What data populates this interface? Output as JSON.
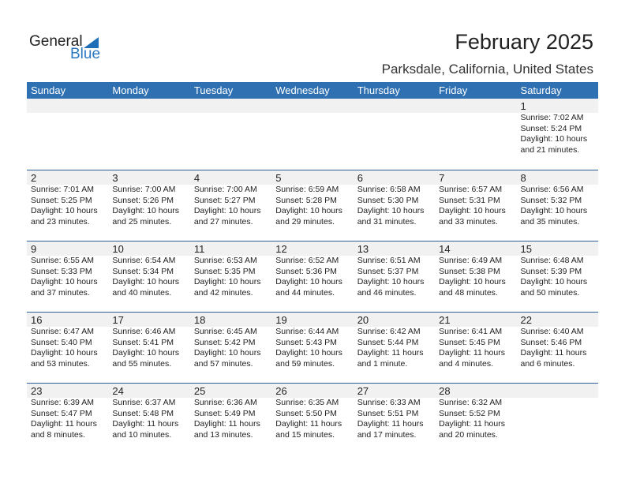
{
  "logo": {
    "general": "General",
    "blue": "Blue"
  },
  "title": "February 2025",
  "location": "Parksdale, California, United States",
  "days": [
    "Sunday",
    "Monday",
    "Tuesday",
    "Wednesday",
    "Thursday",
    "Friday",
    "Saturday"
  ],
  "weeks": [
    [
      null,
      null,
      null,
      null,
      null,
      null,
      {
        "d": "1",
        "sr": "Sunrise: 7:02 AM",
        "ss": "Sunset: 5:24 PM",
        "dl": "Daylight: 10 hours",
        "dm": "and 21 minutes."
      }
    ],
    [
      {
        "d": "2",
        "sr": "Sunrise: 7:01 AM",
        "ss": "Sunset: 5:25 PM",
        "dl": "Daylight: 10 hours",
        "dm": "and 23 minutes."
      },
      {
        "d": "3",
        "sr": "Sunrise: 7:00 AM",
        "ss": "Sunset: 5:26 PM",
        "dl": "Daylight: 10 hours",
        "dm": "and 25 minutes."
      },
      {
        "d": "4",
        "sr": "Sunrise: 7:00 AM",
        "ss": "Sunset: 5:27 PM",
        "dl": "Daylight: 10 hours",
        "dm": "and 27 minutes."
      },
      {
        "d": "5",
        "sr": "Sunrise: 6:59 AM",
        "ss": "Sunset: 5:28 PM",
        "dl": "Daylight: 10 hours",
        "dm": "and 29 minutes."
      },
      {
        "d": "6",
        "sr": "Sunrise: 6:58 AM",
        "ss": "Sunset: 5:30 PM",
        "dl": "Daylight: 10 hours",
        "dm": "and 31 minutes."
      },
      {
        "d": "7",
        "sr": "Sunrise: 6:57 AM",
        "ss": "Sunset: 5:31 PM",
        "dl": "Daylight: 10 hours",
        "dm": "and 33 minutes."
      },
      {
        "d": "8",
        "sr": "Sunrise: 6:56 AM",
        "ss": "Sunset: 5:32 PM",
        "dl": "Daylight: 10 hours",
        "dm": "and 35 minutes."
      }
    ],
    [
      {
        "d": "9",
        "sr": "Sunrise: 6:55 AM",
        "ss": "Sunset: 5:33 PM",
        "dl": "Daylight: 10 hours",
        "dm": "and 37 minutes."
      },
      {
        "d": "10",
        "sr": "Sunrise: 6:54 AM",
        "ss": "Sunset: 5:34 PM",
        "dl": "Daylight: 10 hours",
        "dm": "and 40 minutes."
      },
      {
        "d": "11",
        "sr": "Sunrise: 6:53 AM",
        "ss": "Sunset: 5:35 PM",
        "dl": "Daylight: 10 hours",
        "dm": "and 42 minutes."
      },
      {
        "d": "12",
        "sr": "Sunrise: 6:52 AM",
        "ss": "Sunset: 5:36 PM",
        "dl": "Daylight: 10 hours",
        "dm": "and 44 minutes."
      },
      {
        "d": "13",
        "sr": "Sunrise: 6:51 AM",
        "ss": "Sunset: 5:37 PM",
        "dl": "Daylight: 10 hours",
        "dm": "and 46 minutes."
      },
      {
        "d": "14",
        "sr": "Sunrise: 6:49 AM",
        "ss": "Sunset: 5:38 PM",
        "dl": "Daylight: 10 hours",
        "dm": "and 48 minutes."
      },
      {
        "d": "15",
        "sr": "Sunrise: 6:48 AM",
        "ss": "Sunset: 5:39 PM",
        "dl": "Daylight: 10 hours",
        "dm": "and 50 minutes."
      }
    ],
    [
      {
        "d": "16",
        "sr": "Sunrise: 6:47 AM",
        "ss": "Sunset: 5:40 PM",
        "dl": "Daylight: 10 hours",
        "dm": "and 53 minutes."
      },
      {
        "d": "17",
        "sr": "Sunrise: 6:46 AM",
        "ss": "Sunset: 5:41 PM",
        "dl": "Daylight: 10 hours",
        "dm": "and 55 minutes."
      },
      {
        "d": "18",
        "sr": "Sunrise: 6:45 AM",
        "ss": "Sunset: 5:42 PM",
        "dl": "Daylight: 10 hours",
        "dm": "and 57 minutes."
      },
      {
        "d": "19",
        "sr": "Sunrise: 6:44 AM",
        "ss": "Sunset: 5:43 PM",
        "dl": "Daylight: 10 hours",
        "dm": "and 59 minutes."
      },
      {
        "d": "20",
        "sr": "Sunrise: 6:42 AM",
        "ss": "Sunset: 5:44 PM",
        "dl": "Daylight: 11 hours",
        "dm": "and 1 minute."
      },
      {
        "d": "21",
        "sr": "Sunrise: 6:41 AM",
        "ss": "Sunset: 5:45 PM",
        "dl": "Daylight: 11 hours",
        "dm": "and 4 minutes."
      },
      {
        "d": "22",
        "sr": "Sunrise: 6:40 AM",
        "ss": "Sunset: 5:46 PM",
        "dl": "Daylight: 11 hours",
        "dm": "and 6 minutes."
      }
    ],
    [
      {
        "d": "23",
        "sr": "Sunrise: 6:39 AM",
        "ss": "Sunset: 5:47 PM",
        "dl": "Daylight: 11 hours",
        "dm": "and 8 minutes."
      },
      {
        "d": "24",
        "sr": "Sunrise: 6:37 AM",
        "ss": "Sunset: 5:48 PM",
        "dl": "Daylight: 11 hours",
        "dm": "and 10 minutes."
      },
      {
        "d": "25",
        "sr": "Sunrise: 6:36 AM",
        "ss": "Sunset: 5:49 PM",
        "dl": "Daylight: 11 hours",
        "dm": "and 13 minutes."
      },
      {
        "d": "26",
        "sr": "Sunrise: 6:35 AM",
        "ss": "Sunset: 5:50 PM",
        "dl": "Daylight: 11 hours",
        "dm": "and 15 minutes."
      },
      {
        "d": "27",
        "sr": "Sunrise: 6:33 AM",
        "ss": "Sunset: 5:51 PM",
        "dl": "Daylight: 11 hours",
        "dm": "and 17 minutes."
      },
      {
        "d": "28",
        "sr": "Sunrise: 6:32 AM",
        "ss": "Sunset: 5:52 PM",
        "dl": "Daylight: 11 hours",
        "dm": "and 20 minutes."
      },
      null
    ]
  ],
  "colors": {
    "header": "#2e70b2",
    "logo_blue": "#2a78c2"
  }
}
